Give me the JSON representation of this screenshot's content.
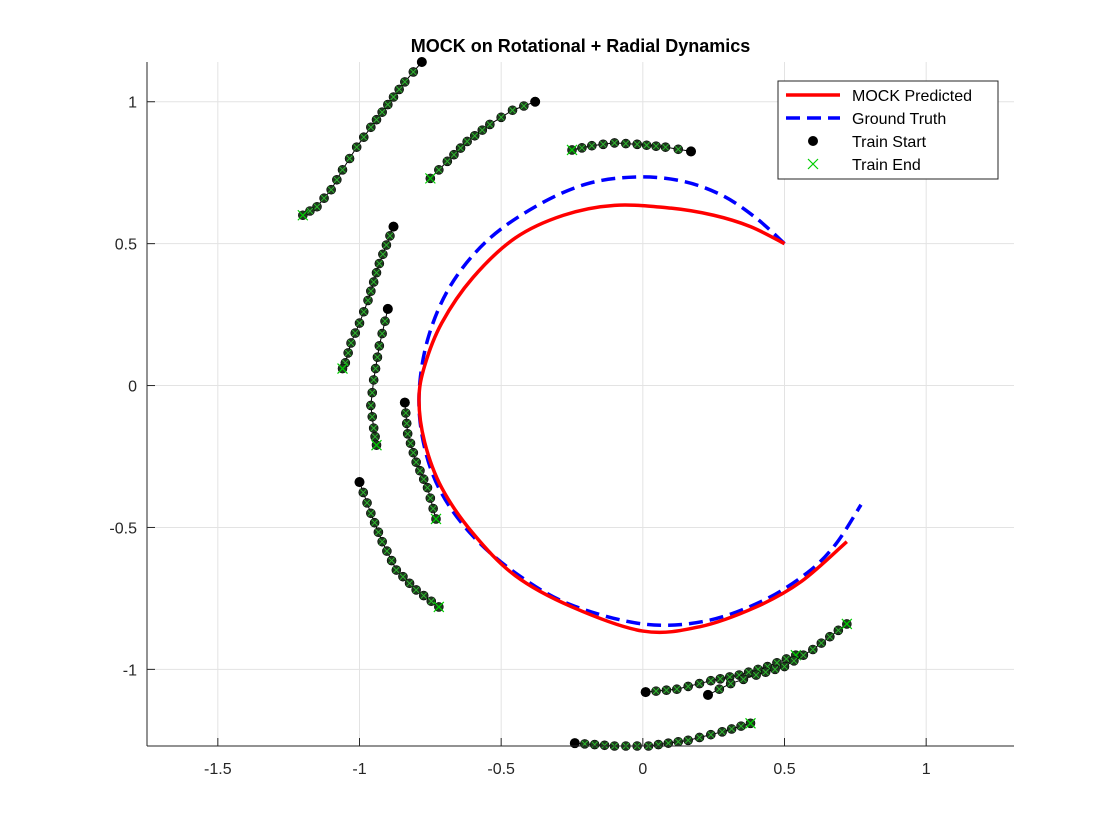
{
  "chart_data": {
    "type": "line",
    "title": "MOCK on Rotational + Radial Dynamics",
    "xlabel": "",
    "ylabel": "",
    "xlim": [
      -1.75,
      1.31
    ],
    "ylim": [
      -1.27,
      1.14
    ],
    "grid": true,
    "legend_position": "top-right",
    "x_ticks": [
      {
        "value": -1.5,
        "label": "-1.5"
      },
      {
        "value": -1,
        "label": "-1"
      },
      {
        "value": -0.5,
        "label": "-0.5"
      },
      {
        "value": 0,
        "label": "0"
      },
      {
        "value": 0.5,
        "label": "0.5"
      },
      {
        "value": 1,
        "label": "1"
      }
    ],
    "y_ticks": [
      {
        "value": 1,
        "label": "1"
      },
      {
        "value": 0.5,
        "label": "0.5"
      },
      {
        "value": 0,
        "label": "0"
      },
      {
        "value": -0.5,
        "label": "-0.5"
      },
      {
        "value": -1,
        "label": "-1"
      }
    ],
    "series": [
      {
        "name": "MOCK Predicted",
        "color": "#ff0000",
        "style": "solid",
        "points": [
          [
            0.5,
            0.5
          ],
          [
            0.38,
            0.56
          ],
          [
            0.25,
            0.6
          ],
          [
            0.1,
            0.625
          ],
          [
            -0.1,
            0.635
          ],
          [
            -0.28,
            0.6
          ],
          [
            -0.45,
            0.52
          ],
          [
            -0.6,
            0.38
          ],
          [
            -0.71,
            0.22
          ],
          [
            -0.77,
            0.07
          ],
          [
            -0.79,
            -0.05
          ],
          [
            -0.77,
            -0.2
          ],
          [
            -0.71,
            -0.36
          ],
          [
            -0.6,
            -0.52
          ],
          [
            -0.45,
            -0.67
          ],
          [
            -0.25,
            -0.78
          ],
          [
            0.0,
            -0.865
          ],
          [
            0.2,
            -0.85
          ],
          [
            0.4,
            -0.78
          ],
          [
            0.56,
            -0.69
          ],
          [
            0.72,
            -0.55
          ]
        ]
      },
      {
        "name": "Ground Truth",
        "color": "#0000ff",
        "style": "dashed",
        "points": [
          [
            0.5,
            0.5
          ],
          [
            0.4,
            0.59
          ],
          [
            0.28,
            0.67
          ],
          [
            0.14,
            0.72
          ],
          [
            -0.02,
            0.735
          ],
          [
            -0.2,
            0.71
          ],
          [
            -0.38,
            0.63
          ],
          [
            -0.55,
            0.51
          ],
          [
            -0.68,
            0.35
          ],
          [
            -0.76,
            0.16
          ],
          [
            -0.79,
            -0.04
          ],
          [
            -0.77,
            -0.22
          ],
          [
            -0.71,
            -0.38
          ],
          [
            -0.6,
            -0.53
          ],
          [
            -0.45,
            -0.66
          ],
          [
            -0.26,
            -0.77
          ],
          [
            0.0,
            -0.84
          ],
          [
            0.22,
            -0.83
          ],
          [
            0.42,
            -0.76
          ],
          [
            0.58,
            -0.66
          ],
          [
            0.68,
            -0.56
          ],
          [
            0.77,
            -0.42
          ]
        ]
      }
    ],
    "training_trajectories": [
      [
        [
          -0.78,
          1.14
        ],
        [
          -0.84,
          1.07
        ],
        [
          -0.9,
          0.99
        ],
        [
          -0.96,
          0.91
        ],
        [
          -1.01,
          0.84
        ],
        [
          -1.06,
          0.76
        ],
        [
          -1.1,
          0.69
        ],
        [
          -1.15,
          0.63
        ],
        [
          -1.2,
          0.6
        ]
      ],
      [
        [
          -0.38,
          1.0
        ],
        [
          -0.46,
          0.97
        ],
        [
          -0.54,
          0.92
        ],
        [
          -0.62,
          0.86
        ],
        [
          -0.69,
          0.79
        ],
        [
          -0.75,
          0.73
        ]
      ],
      [
        [
          0.17,
          0.825
        ],
        [
          0.08,
          0.84
        ],
        [
          -0.02,
          0.85
        ],
        [
          -0.1,
          0.855
        ],
        [
          -0.18,
          0.845
        ],
        [
          -0.25,
          0.83
        ]
      ],
      [
        [
          -0.88,
          0.56
        ],
        [
          -0.93,
          0.43
        ],
        [
          -0.97,
          0.3
        ],
        [
          -1.0,
          0.22
        ],
        [
          -1.03,
          0.15
        ],
        [
          -1.05,
          0.08
        ],
        [
          -1.06,
          0.06
        ]
      ],
      [
        [
          -0.9,
          0.27
        ],
        [
          -0.93,
          0.14
        ],
        [
          -0.95,
          0.02
        ],
        [
          -0.96,
          -0.07
        ],
        [
          -0.95,
          -0.15
        ],
        [
          -0.94,
          -0.21
        ]
      ],
      [
        [
          -0.84,
          -0.06
        ],
        [
          -0.83,
          -0.17
        ],
        [
          -0.8,
          -0.27
        ],
        [
          -0.76,
          -0.36
        ],
        [
          -0.73,
          -0.47
        ]
      ],
      [
        [
          -1.0,
          -0.34
        ],
        [
          -0.96,
          -0.45
        ],
        [
          -0.92,
          -0.55
        ],
        [
          -0.87,
          -0.65
        ],
        [
          -0.8,
          -0.72
        ],
        [
          -0.72,
          -0.78
        ]
      ],
      [
        [
          0.01,
          -1.08
        ],
        [
          0.12,
          -1.07
        ],
        [
          0.24,
          -1.04
        ],
        [
          0.34,
          -1.02
        ],
        [
          0.44,
          -0.99
        ],
        [
          0.54,
          -0.95
        ]
      ],
      [
        [
          0.23,
          -1.09
        ],
        [
          0.31,
          -1.05
        ],
        [
          0.4,
          -1.02
        ],
        [
          0.5,
          -0.99
        ],
        [
          0.6,
          -0.93
        ],
        [
          0.72,
          -0.84
        ]
      ],
      [
        [
          -0.24,
          -1.26
        ],
        [
          -0.1,
          -1.27
        ],
        [
          0.02,
          -1.27
        ],
        [
          0.16,
          -1.25
        ],
        [
          0.28,
          -1.22
        ],
        [
          0.38,
          -1.19
        ]
      ]
    ],
    "markers": {
      "train_start": {
        "name": "Train Start",
        "color": "#000000"
      },
      "train_end": {
        "name": "Train End",
        "color": "#00cc00"
      }
    }
  }
}
